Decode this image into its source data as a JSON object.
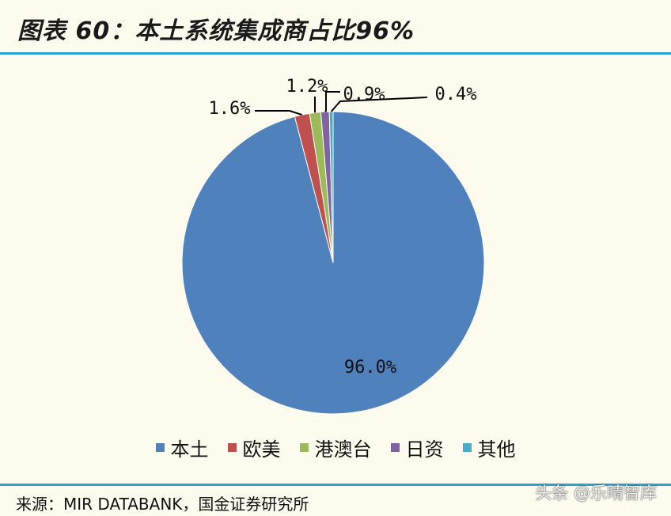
{
  "header": {
    "title": "图表 60：本土系统集成商占比96%"
  },
  "chart_data": {
    "type": "pie",
    "title": "",
    "labels": [
      "本土",
      "欧美",
      "港澳台",
      "日资",
      "其他"
    ],
    "values": [
      96.0,
      1.6,
      1.2,
      0.9,
      0.4
    ],
    "data_labels": [
      "96.0%",
      "1.6%",
      "1.2%",
      "0.9%",
      "0.4%"
    ],
    "colors": [
      "#4f81bd",
      "#c0504d",
      "#9bbb59",
      "#8064a2",
      "#4bacc6"
    ],
    "legend_position": "bottom"
  },
  "footer": {
    "source": "来源：MIR DATABANK，国金证券研究所",
    "watermark": "头条 @乐晴智库"
  }
}
